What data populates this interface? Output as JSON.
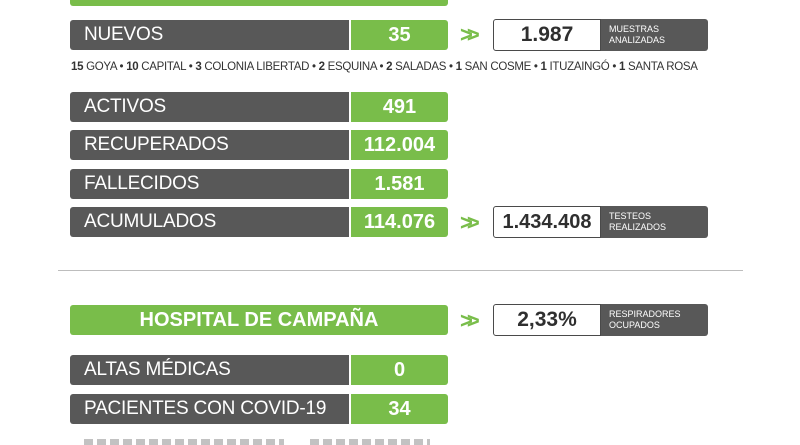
{
  "nuevos": {
    "label": "NUEVOS",
    "value": "35"
  },
  "muestras": {
    "value": "1.987",
    "label_line1": "MUESTRAS",
    "label_line2": "ANALIZADAS"
  },
  "breakdown": [
    {
      "n": "15",
      "place": "GOYA"
    },
    {
      "n": "10",
      "place": "CAPITAL"
    },
    {
      "n": "3",
      "place": "COLONIA LIBERTAD"
    },
    {
      "n": "2",
      "place": "ESQUINA"
    },
    {
      "n": "2",
      "place": "SALADAS"
    },
    {
      "n": "1",
      "place": "SAN COSME"
    },
    {
      "n": "1",
      "place": "ITUZAINGÓ"
    },
    {
      "n": "1",
      "place": "SANTA ROSA"
    }
  ],
  "stats": [
    {
      "label": "ACTIVOS",
      "value": "491"
    },
    {
      "label": "RECUPERADOS",
      "value": "112.004"
    },
    {
      "label": "FALLECIDOS",
      "value": "1.581"
    },
    {
      "label": "ACUMULADOS",
      "value": "114.076"
    }
  ],
  "testeos": {
    "value": "1.434.408",
    "label_line1": "TESTEOS",
    "label_line2": "REALIZADOS"
  },
  "hospital": {
    "title": "HOSPITAL DE CAMPAÑA"
  },
  "respiradores": {
    "value": "2,33%",
    "label_line1": "RESPIRADORES",
    "label_line2": "OCUPADOS"
  },
  "hospital_stats": [
    {
      "label": "ALTAS MÉDICAS",
      "value": "0"
    },
    {
      "label": "PACIENTES CON COVID-19",
      "value": "34"
    }
  ],
  "colors": {
    "green": "#79bd4a",
    "gray": "#585858"
  }
}
